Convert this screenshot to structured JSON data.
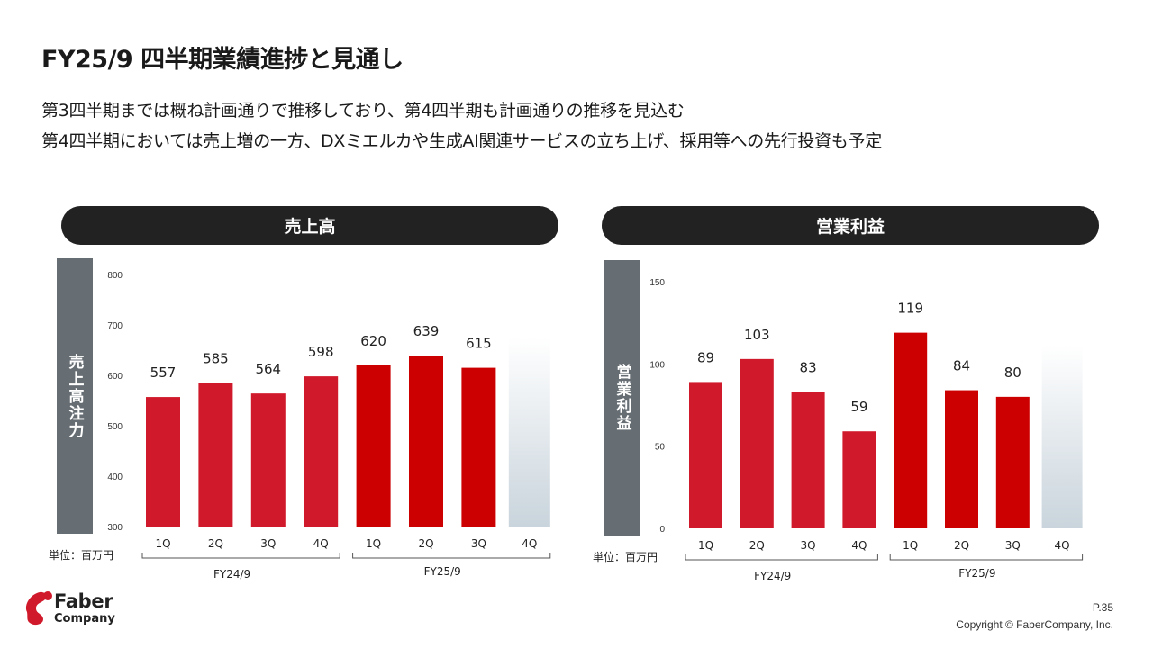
{
  "title": "FY25/9 四半期業績進捗と見通し",
  "lead": [
    "第3四半期までは概ね計画通りで推移しており、第4四半期も計画通りの推移を見込む",
    "第4四半期においては売上増の一方、DXミエルカや生成AI関連サービスの立ち上げ、採用等への先行投資も予定"
  ],
  "footer": {
    "page": "P.35",
    "copyright": "Copyright © FaberCompany, Inc.",
    "logo_line1": "Faber",
    "logo_line2": "Company"
  },
  "colors": {
    "bar_prev": "#d0192a",
    "bar_curr": "#cc0000",
    "bar_forecast": "#c9d4dc",
    "pill": "#222222",
    "side": "#666e74"
  },
  "chart_data": [
    {
      "type": "bar",
      "title": "売上高",
      "ylabel": "売上高注力",
      "unit": "単位：百万円",
      "ylim": [
        300,
        800
      ],
      "yticks": [
        "300",
        "400",
        "500",
        "600",
        "700",
        "800"
      ],
      "categories": [
        "1Q",
        "2Q",
        "3Q",
        "4Q",
        "1Q",
        "2Q",
        "3Q",
        "4Q"
      ],
      "groups": [
        "FY24/9",
        "FY25/9"
      ],
      "values": [
        557,
        585,
        564,
        598,
        620,
        639,
        615,
        null
      ],
      "labels": [
        "557",
        "585",
        "564",
        "598",
        "620",
        "639",
        "615",
        ""
      ]
    },
    {
      "type": "bar",
      "title": "営業利益",
      "ylabel": "営業利益",
      "unit": "単位：百万円",
      "ylim": [
        0,
        150
      ],
      "yticks": [
        "0",
        "50",
        "100",
        "150"
      ],
      "categories": [
        "1Q",
        "2Q",
        "3Q",
        "4Q",
        "1Q",
        "2Q",
        "3Q",
        "4Q"
      ],
      "groups": [
        "FY24/9",
        "FY25/9"
      ],
      "values": [
        89,
        103,
        83,
        59,
        119,
        84,
        80,
        null
      ],
      "labels": [
        "89",
        "103",
        "83",
        "59",
        "119",
        "84",
        "80",
        ""
      ]
    }
  ]
}
